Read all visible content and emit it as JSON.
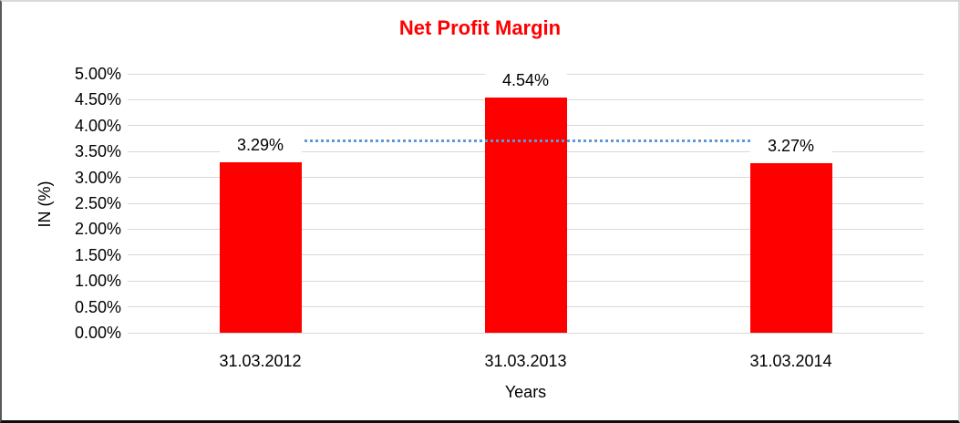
{
  "chart_data": {
    "type": "bar",
    "title": "Net Profit Margin",
    "title_color": "#ff0000",
    "xlabel": "Years",
    "ylabel": "IN (%)",
    "categories": [
      "31.03.2012",
      "31.03.2013",
      "31.03.2014"
    ],
    "series": [
      {
        "name": "Net Profit Margin",
        "values": [
          3.29,
          4.54,
          3.27
        ],
        "color": "#ff0000"
      }
    ],
    "data_labels": [
      "3.29%",
      "4.54%",
      "3.27%"
    ],
    "trendline": {
      "type": "linear",
      "style": "dotted",
      "color": "#5b9bd5",
      "level": 3.7
    },
    "ylim": [
      0,
      5
    ],
    "ytick_step": 0.5,
    "ytick_labels": [
      "0.00%",
      "0.50%",
      "1.00%",
      "1.50%",
      "2.00%",
      "2.50%",
      "3.00%",
      "3.50%",
      "4.00%",
      "4.50%",
      "5.00%"
    ],
    "grid": true,
    "gridline_color": "#d9d9d9",
    "legend": "none"
  }
}
